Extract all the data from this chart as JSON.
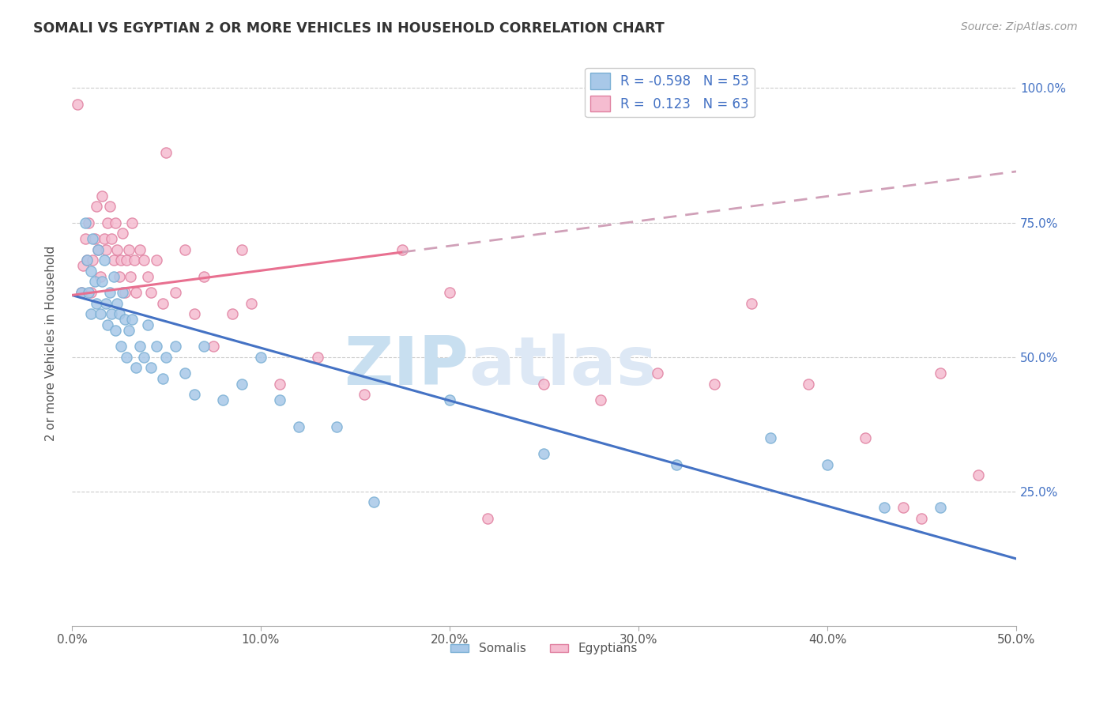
{
  "title": "SOMALI VS EGYPTIAN 2 OR MORE VEHICLES IN HOUSEHOLD CORRELATION CHART",
  "source": "Source: ZipAtlas.com",
  "ylabel": "2 or more Vehicles in Household",
  "xmin": 0.0,
  "xmax": 0.5,
  "ymin": 0.0,
  "ymax": 1.05,
  "x_tick_labels": [
    "0.0%",
    "10.0%",
    "20.0%",
    "30.0%",
    "40.0%",
    "50.0%"
  ],
  "x_tick_vals": [
    0.0,
    0.1,
    0.2,
    0.3,
    0.4,
    0.5
  ],
  "y_tick_labels_right": [
    "100.0%",
    "75.0%",
    "50.0%",
    "25.0%"
  ],
  "y_tick_vals_right": [
    1.0,
    0.75,
    0.5,
    0.25
  ],
  "somali_R": -0.598,
  "somali_N": 53,
  "egyptian_R": 0.123,
  "egyptian_N": 63,
  "somali_color": "#a8c8e8",
  "somali_edge_color": "#7aafd4",
  "egyptian_color": "#f5bcd0",
  "egyptian_edge_color": "#e080a0",
  "trendline_somali_color": "#4472c4",
  "trendline_egyptian_solid_color": "#e87090",
  "trendline_egyptian_dashed_color": "#d0a0b8",
  "watermark_zip": "ZIP",
  "watermark_atlas": "atlas",
  "legend_label_somali": "Somalis",
  "legend_label_egyptian": "Egyptians",
  "somali_trendline_x0": 0.0,
  "somali_trendline_y0": 0.615,
  "somali_trendline_x1": 0.5,
  "somali_trendline_y1": 0.125,
  "egyptian_trendline_x0": 0.0,
  "egyptian_trendline_y0": 0.615,
  "egyptian_trendline_x1_solid": 0.175,
  "egyptian_trendline_y1_solid": 0.695,
  "egyptian_trendline_x1_dash": 0.5,
  "egyptian_trendline_y1_dash": 0.845,
  "somali_x": [
    0.005,
    0.007,
    0.008,
    0.009,
    0.01,
    0.01,
    0.011,
    0.012,
    0.013,
    0.014,
    0.015,
    0.016,
    0.017,
    0.018,
    0.019,
    0.02,
    0.021,
    0.022,
    0.023,
    0.024,
    0.025,
    0.026,
    0.027,
    0.028,
    0.029,
    0.03,
    0.032,
    0.034,
    0.036,
    0.038,
    0.04,
    0.042,
    0.045,
    0.048,
    0.05,
    0.055,
    0.06,
    0.065,
    0.07,
    0.08,
    0.09,
    0.1,
    0.11,
    0.12,
    0.14,
    0.16,
    0.2,
    0.25,
    0.32,
    0.37,
    0.4,
    0.43,
    0.46
  ],
  "somali_y": [
    0.62,
    0.75,
    0.68,
    0.62,
    0.66,
    0.58,
    0.72,
    0.64,
    0.6,
    0.7,
    0.58,
    0.64,
    0.68,
    0.6,
    0.56,
    0.62,
    0.58,
    0.65,
    0.55,
    0.6,
    0.58,
    0.52,
    0.62,
    0.57,
    0.5,
    0.55,
    0.57,
    0.48,
    0.52,
    0.5,
    0.56,
    0.48,
    0.52,
    0.46,
    0.5,
    0.52,
    0.47,
    0.43,
    0.52,
    0.42,
    0.45,
    0.5,
    0.42,
    0.37,
    0.37,
    0.23,
    0.42,
    0.32,
    0.3,
    0.35,
    0.3,
    0.22,
    0.22
  ],
  "egyptian_x": [
    0.003,
    0.005,
    0.006,
    0.007,
    0.008,
    0.009,
    0.01,
    0.011,
    0.012,
    0.013,
    0.014,
    0.015,
    0.016,
    0.017,
    0.018,
    0.019,
    0.02,
    0.021,
    0.022,
    0.023,
    0.024,
    0.025,
    0.026,
    0.027,
    0.028,
    0.029,
    0.03,
    0.031,
    0.032,
    0.033,
    0.034,
    0.036,
    0.038,
    0.04,
    0.042,
    0.045,
    0.048,
    0.05,
    0.055,
    0.06,
    0.065,
    0.07,
    0.075,
    0.085,
    0.09,
    0.095,
    0.11,
    0.13,
    0.155,
    0.175,
    0.2,
    0.22,
    0.25,
    0.28,
    0.31,
    0.34,
    0.36,
    0.39,
    0.42,
    0.44,
    0.45,
    0.46,
    0.48
  ],
  "egyptian_y": [
    0.97,
    0.62,
    0.67,
    0.72,
    0.68,
    0.75,
    0.62,
    0.68,
    0.72,
    0.78,
    0.7,
    0.65,
    0.8,
    0.72,
    0.7,
    0.75,
    0.78,
    0.72,
    0.68,
    0.75,
    0.7,
    0.65,
    0.68,
    0.73,
    0.62,
    0.68,
    0.7,
    0.65,
    0.75,
    0.68,
    0.62,
    0.7,
    0.68,
    0.65,
    0.62,
    0.68,
    0.6,
    0.88,
    0.62,
    0.7,
    0.58,
    0.65,
    0.52,
    0.58,
    0.7,
    0.6,
    0.45,
    0.5,
    0.43,
    0.7,
    0.62,
    0.2,
    0.45,
    0.42,
    0.47,
    0.45,
    0.6,
    0.45,
    0.35,
    0.22,
    0.2,
    0.47,
    0.28
  ]
}
